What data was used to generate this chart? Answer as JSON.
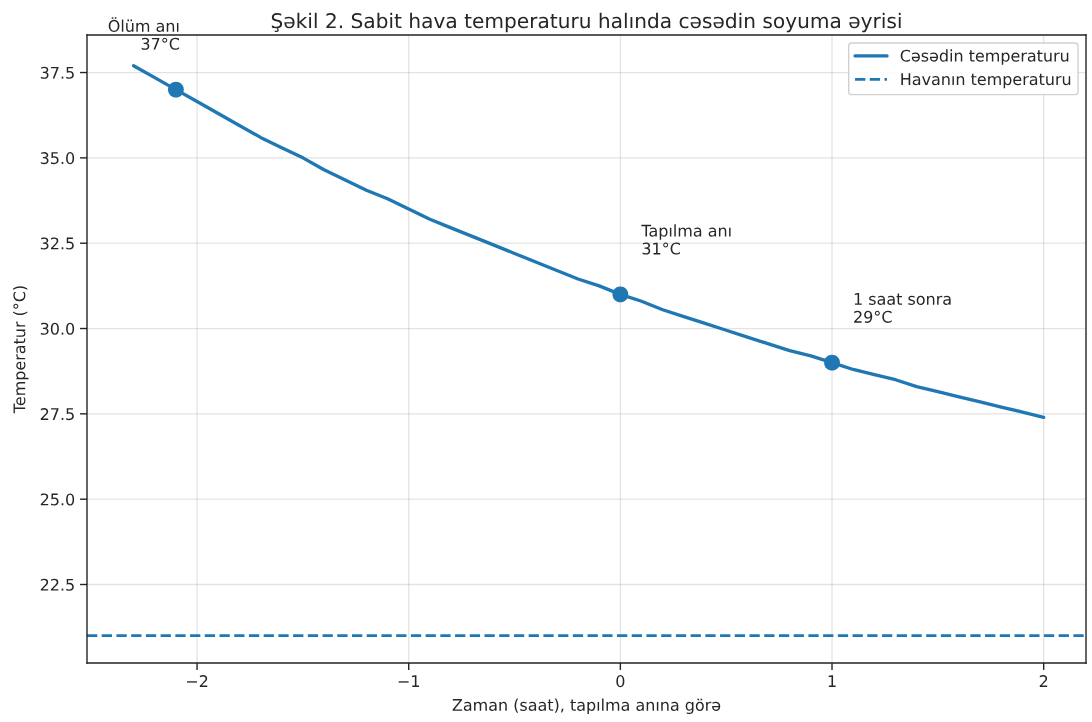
{
  "chart_data": {
    "type": "line",
    "title": "Şəkil 2. Sabit hava temperaturu halında cəsədin soyuma əyrisi",
    "xlabel": "Zaman (saat), tapılma anına görə",
    "ylabel": "Temperatur (°C)",
    "series": [
      {
        "name": "Cəsədin temperaturu",
        "color": "#1f77b4",
        "line_style": "solid",
        "x": [
          -2.3,
          -2.2,
          -2.1,
          -2.0,
          -1.9,
          -1.8,
          -1.7,
          -1.6,
          -1.5,
          -1.4,
          -1.3,
          -1.2,
          -1.1,
          -1.0,
          -0.9,
          -0.8,
          -0.7,
          -0.6,
          -0.5,
          -0.4,
          -0.3,
          -0.2,
          -0.1,
          0.0,
          0.1,
          0.2,
          0.3,
          0.4,
          0.5,
          0.6,
          0.7,
          0.8,
          0.9,
          1.0,
          1.1,
          1.2,
          1.3,
          1.4,
          1.5,
          1.6,
          1.7,
          1.8,
          1.9,
          2.0
        ],
        "values": [
          37.7,
          37.35,
          37.0,
          36.65,
          36.3,
          35.95,
          35.6,
          35.3,
          35.0,
          34.65,
          34.35,
          34.05,
          33.8,
          33.5,
          33.2,
          32.95,
          32.7,
          32.45,
          32.2,
          31.95,
          31.7,
          31.45,
          31.25,
          31.0,
          30.8,
          30.55,
          30.35,
          30.15,
          29.95,
          29.75,
          29.55,
          29.35,
          29.2,
          29.0,
          28.8,
          28.65,
          28.5,
          28.3,
          28.15,
          28.0,
          27.85,
          27.7,
          27.55,
          27.4
        ]
      },
      {
        "type": "scatter",
        "color": "#1f77b4",
        "marker": "circle",
        "x": [
          -2.1,
          0,
          1
        ],
        "values": [
          37,
          31,
          29
        ]
      }
    ],
    "ref_lines": [
      {
        "axis": "y",
        "value": 21,
        "label": "Havanın temperaturu",
        "color": "#1f77b4",
        "line_style": "dashed"
      }
    ],
    "annotations": [
      "Ölüm anı\n37°C",
      "Tapılma anı\n31°C",
      "1 saat sonra\n29°C"
    ],
    "xlim": [
      -2.52,
      2.2
    ],
    "ylim": [
      20.2,
      38.6
    ],
    "xticks": [
      {
        "value": -2,
        "label": "−2"
      },
      {
        "value": -1,
        "label": "−1"
      },
      0,
      1,
      2
    ],
    "yticks": [
      22.5,
      {
        "value": 25,
        "label": "25.0"
      },
      27.5,
      {
        "value": 30,
        "label": "30.0"
      },
      32.5,
      {
        "value": 35,
        "label": "35.0"
      },
      37.5
    ],
    "grid": true,
    "legend": "top right"
  }
}
